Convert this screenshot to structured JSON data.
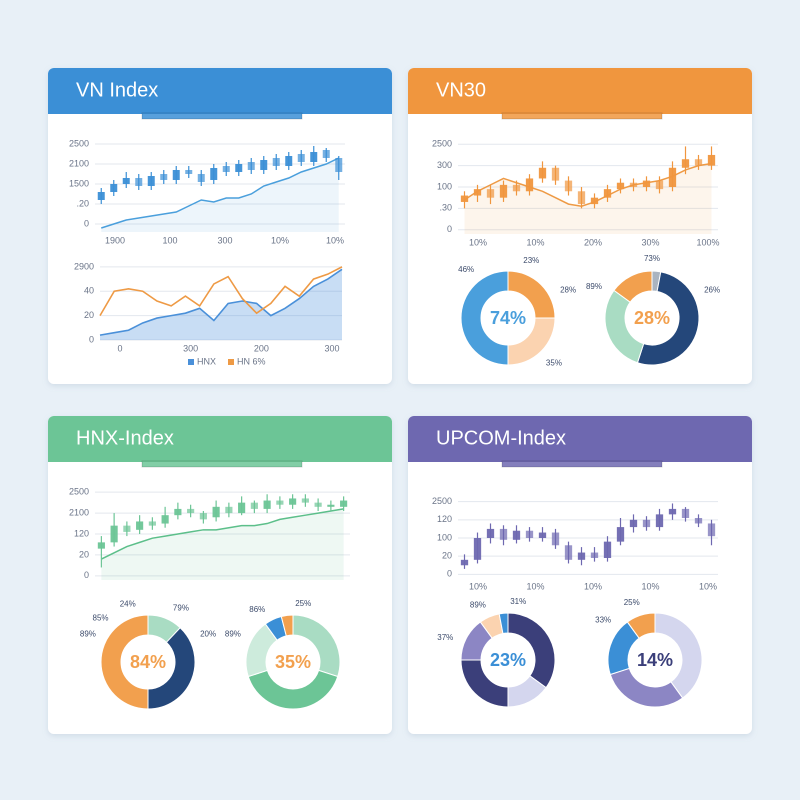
{
  "chart_data": [
    {
      "type": "candlestick",
      "title": "VN Index",
      "color": "#3b8fd6",
      "line_color": "#4a9fdc",
      "ylim": [
        -0.4,
        4.2
      ],
      "yticks": [
        0,
        1,
        2,
        3,
        4
      ],
      "grid": true,
      "y_labels": [
        "0",
        ".20",
        "1500",
        "2100",
        "2500"
      ],
      "x_labels": [
        "1900",
        "100",
        "300",
        "10%",
        "10%"
      ],
      "open": [
        1.2,
        1.6,
        2.0,
        2.3,
        1.9,
        2.5,
        2.2,
        2.7,
        2.5,
        2.2,
        2.9,
        2.6,
        3.1,
        2.7,
        3.3,
        2.9,
        3.5,
        3.1,
        3.7,
        3.3
      ],
      "high": [
        1.8,
        2.2,
        2.6,
        2.5,
        2.6,
        2.7,
        2.9,
        2.9,
        2.7,
        3.0,
        3.1,
        3.2,
        3.3,
        3.4,
        3.5,
        3.6,
        3.7,
        3.9,
        3.8,
        3.4
      ],
      "low": [
        1.0,
        1.4,
        1.8,
        1.7,
        1.7,
        2.0,
        2.0,
        2.3,
        1.9,
        2.0,
        2.4,
        2.4,
        2.5,
        2.5,
        2.7,
        2.7,
        2.9,
        2.9,
        3.1,
        2.2
      ],
      "close": [
        1.6,
        2.0,
        2.3,
        1.9,
        2.4,
        2.2,
        2.7,
        2.5,
        2.1,
        2.8,
        2.6,
        3.0,
        2.7,
        3.2,
        2.9,
        3.4,
        3.1,
        3.6,
        3.3,
        2.6
      ],
      "line": [
        -0.2,
        0,
        0.2,
        0.3,
        0.4,
        0.5,
        0.6,
        0.9,
        1.2,
        1.1,
        1.3,
        1.3,
        1.5,
        1.9,
        2.1,
        2.3,
        2.6,
        2.8,
        3.0,
        3.3
      ]
    },
    {
      "type": "line",
      "ylim": [
        0,
        3.2
      ],
      "yticks": [
        0,
        1,
        2,
        3
      ],
      "grid": true,
      "y_labels": [
        "0",
        "20",
        "40",
        "2900"
      ],
      "x_labels": [
        "0",
        "300",
        "200",
        "300"
      ],
      "series": [
        {
          "name": "HNX",
          "color": "#4a90d9",
          "area": true,
          "values": [
            0.2,
            0.3,
            0.4,
            0.7,
            0.9,
            1.0,
            1.1,
            1.3,
            0.8,
            1.5,
            1.6,
            1.5,
            1.0,
            1.3,
            1.7,
            2.2,
            2.5,
            2.9
          ]
        },
        {
          "name": "HN 6%",
          "color": "#ee9a45",
          "values": [
            1.0,
            2.0,
            2.1,
            2.0,
            1.6,
            1.4,
            1.8,
            1.4,
            2.3,
            2.6,
            1.7,
            1.1,
            1.5,
            2.2,
            1.8,
            2.5,
            2.7,
            3.0
          ]
        }
      ]
    },
    {
      "type": "candlestick",
      "title": "VN30",
      "color": "#f0963e",
      "line_color": "#ee9a45",
      "ylim": [
        -0.2,
        4.2
      ],
      "yticks": [
        0,
        1,
        2,
        3,
        4
      ],
      "grid": true,
      "y_labels": [
        "0",
        ".30",
        "100",
        "300",
        "2500"
      ],
      "x_labels": [
        "10%",
        "10%",
        "20%",
        "30%",
        "100%"
      ],
      "open": [
        1.3,
        1.6,
        1.9,
        1.5,
        2.1,
        1.8,
        2.4,
        2.9,
        2.3,
        1.8,
        1.2,
        1.5,
        1.9,
        2.2,
        2.0,
        2.3,
        2.0,
        2.9,
        3.3,
        3.0
      ],
      "high": [
        1.8,
        2.1,
        2.1,
        2.3,
        2.3,
        2.6,
        3.2,
        3.0,
        2.5,
        2.0,
        1.7,
        2.1,
        2.4,
        2.4,
        2.5,
        2.5,
        3.2,
        3.9,
        3.5,
        3.9
      ],
      "low": [
        1.0,
        1.3,
        1.2,
        1.3,
        1.6,
        1.6,
        2.2,
        2.1,
        1.6,
        1.0,
        1.0,
        1.3,
        1.7,
        1.8,
        1.8,
        1.7,
        1.8,
        2.6,
        2.8,
        2.8
      ],
      "close": [
        1.6,
        1.9,
        1.5,
        2.1,
        1.8,
        2.4,
        2.9,
        2.3,
        1.8,
        1.2,
        1.5,
        1.9,
        2.2,
        2.0,
        2.3,
        1.9,
        2.9,
        3.3,
        3.0,
        3.5
      ],
      "line": [
        1.4,
        1.8,
        2.1,
        2.4,
        2.2,
        2.0,
        1.8,
        1.5,
        1.2,
        1.1,
        1.3,
        1.6,
        1.9,
        2.1,
        2.2,
        2.3,
        2.5,
        2.8,
        3.0,
        3.1
      ]
    },
    {
      "type": "pie",
      "center_label": "74%",
      "values": [
        25,
        25,
        50
      ],
      "colors": [
        "#f2a04e",
        "#fbd3b0",
        "#4a9fdc"
      ],
      "annotations": [
        "46%",
        "23%",
        "28%",
        "35%"
      ]
    },
    {
      "type": "pie",
      "center_label": "28%",
      "values": [
        3,
        52,
        30,
        15
      ],
      "colors": [
        "#aab4c0",
        "#24477a",
        "#a9dcc3",
        "#f2a04e"
      ],
      "annotations": [
        "73%",
        "26%",
        "89%"
      ]
    },
    {
      "type": "candlestick",
      "title": "HNX-Index",
      "color": "#6cc596",
      "line_color": "#5cbf8a",
      "ylim": [
        -0.2,
        4.2
      ],
      "yticks": [
        0,
        1,
        2,
        3,
        4
      ],
      "grid": true,
      "y_labels": [
        "0",
        "20",
        "120",
        "2100",
        "2500"
      ],
      "x_labels": [],
      "open": [
        1.3,
        1.6,
        2.4,
        2.2,
        2.6,
        2.5,
        2.9,
        3.2,
        3.0,
        2.8,
        3.3,
        3.0,
        3.5,
        3.2,
        3.6,
        3.4,
        3.7,
        3.5,
        3.3,
        3.3
      ],
      "high": [
        1.9,
        3.0,
        2.6,
        2.9,
        2.8,
        3.3,
        3.5,
        3.4,
        3.1,
        3.6,
        3.5,
        3.8,
        3.6,
        3.9,
        3.8,
        3.9,
        3.9,
        3.7,
        3.6,
        3.8
      ],
      "low": [
        0.4,
        1.4,
        1.9,
        2.0,
        2.2,
        2.3,
        2.7,
        2.8,
        2.5,
        2.6,
        2.8,
        2.9,
        3.0,
        3.0,
        3.2,
        3.2,
        3.3,
        3.1,
        3.1,
        3.1
      ],
      "close": [
        1.6,
        2.4,
        2.1,
        2.6,
        2.4,
        2.9,
        3.2,
        3.0,
        2.7,
        3.3,
        3.0,
        3.5,
        3.2,
        3.6,
        3.4,
        3.7,
        3.5,
        3.3,
        3.4,
        3.6
      ],
      "line": [
        0.8,
        1.1,
        1.4,
        1.6,
        1.8,
        1.9,
        2.0,
        2.1,
        2.2,
        2.2,
        2.3,
        2.4,
        2.4,
        2.5,
        2.7,
        2.8,
        2.9,
        3.0,
        3.1,
        3.2
      ]
    },
    {
      "type": "pie",
      "center_label": "84%",
      "values": [
        12,
        38,
        50
      ],
      "colors": [
        "#a9dcc3",
        "#24477a",
        "#f2a04e"
      ],
      "annotations": [
        "24%",
        "79%",
        "20%",
        "85%",
        "89%"
      ]
    },
    {
      "type": "pie",
      "center_label": "35%",
      "values": [
        30,
        40,
        20,
        6,
        4
      ],
      "colors": [
        "#a9dcc3",
        "#6cc596",
        "#cdebdc",
        "#3b8fd6",
        "#f2a04e"
      ],
      "annotations": [
        "25%",
        "86%",
        "89%"
      ]
    },
    {
      "type": "candlestick",
      "title": "UPCOM-Index",
      "color": "#6e68b0",
      "line_color": "#6e68b0",
      "ylim": [
        -0.2,
        4.2
      ],
      "yticks": [
        0,
        1,
        2,
        3,
        4
      ],
      "grid": true,
      "y_labels": [
        "0",
        "20",
        "100",
        "120",
        "2500"
      ],
      "x_labels": [
        "10%",
        "10%",
        "10%",
        "10%",
        "10%"
      ],
      "open": [
        0.5,
        0.8,
        2.0,
        2.5,
        1.9,
        2.4,
        2.0,
        2.3,
        1.6,
        0.8,
        1.2,
        0.9,
        1.8,
        2.6,
        3.0,
        2.6,
        3.3,
        3.6,
        3.1,
        2.8
      ],
      "high": [
        1.1,
        2.3,
        2.8,
        2.7,
        2.7,
        2.6,
        2.6,
        2.5,
        1.8,
        1.5,
        1.5,
        2.1,
        3.1,
        3.3,
        3.2,
        3.6,
        3.9,
        3.7,
        3.3,
        3.0
      ],
      "low": [
        0.3,
        0.6,
        1.7,
        1.6,
        1.7,
        1.8,
        1.8,
        1.4,
        0.6,
        0.5,
        0.7,
        0.7,
        1.6,
        2.3,
        2.4,
        2.4,
        3.0,
        2.9,
        2.6,
        1.6
      ],
      "close": [
        0.8,
        2.0,
        2.5,
        1.9,
        2.4,
        2.0,
        2.3,
        1.6,
        0.8,
        1.2,
        0.9,
        1.8,
        2.6,
        3.0,
        2.6,
        3.3,
        3.6,
        3.1,
        2.8,
        2.1
      ]
    },
    {
      "type": "pie",
      "center_label": "23%",
      "values": [
        35,
        15,
        25,
        15,
        7,
        3
      ],
      "colors": [
        "#3b3f7a",
        "#d4d6ee",
        "#3b3f7a",
        "#8c86c4",
        "#fbd3b0",
        "#3b8fd6"
      ],
      "annotations": [
        "31%",
        "89%",
        "37%"
      ]
    },
    {
      "type": "pie",
      "center_label": "14%",
      "values": [
        40,
        30,
        20,
        10
      ],
      "colors": [
        "#d4d6ee",
        "#8c86c4",
        "#3b8fd6",
        "#f2a04e"
      ],
      "annotations": [
        "25%",
        "33%"
      ]
    }
  ]
}
